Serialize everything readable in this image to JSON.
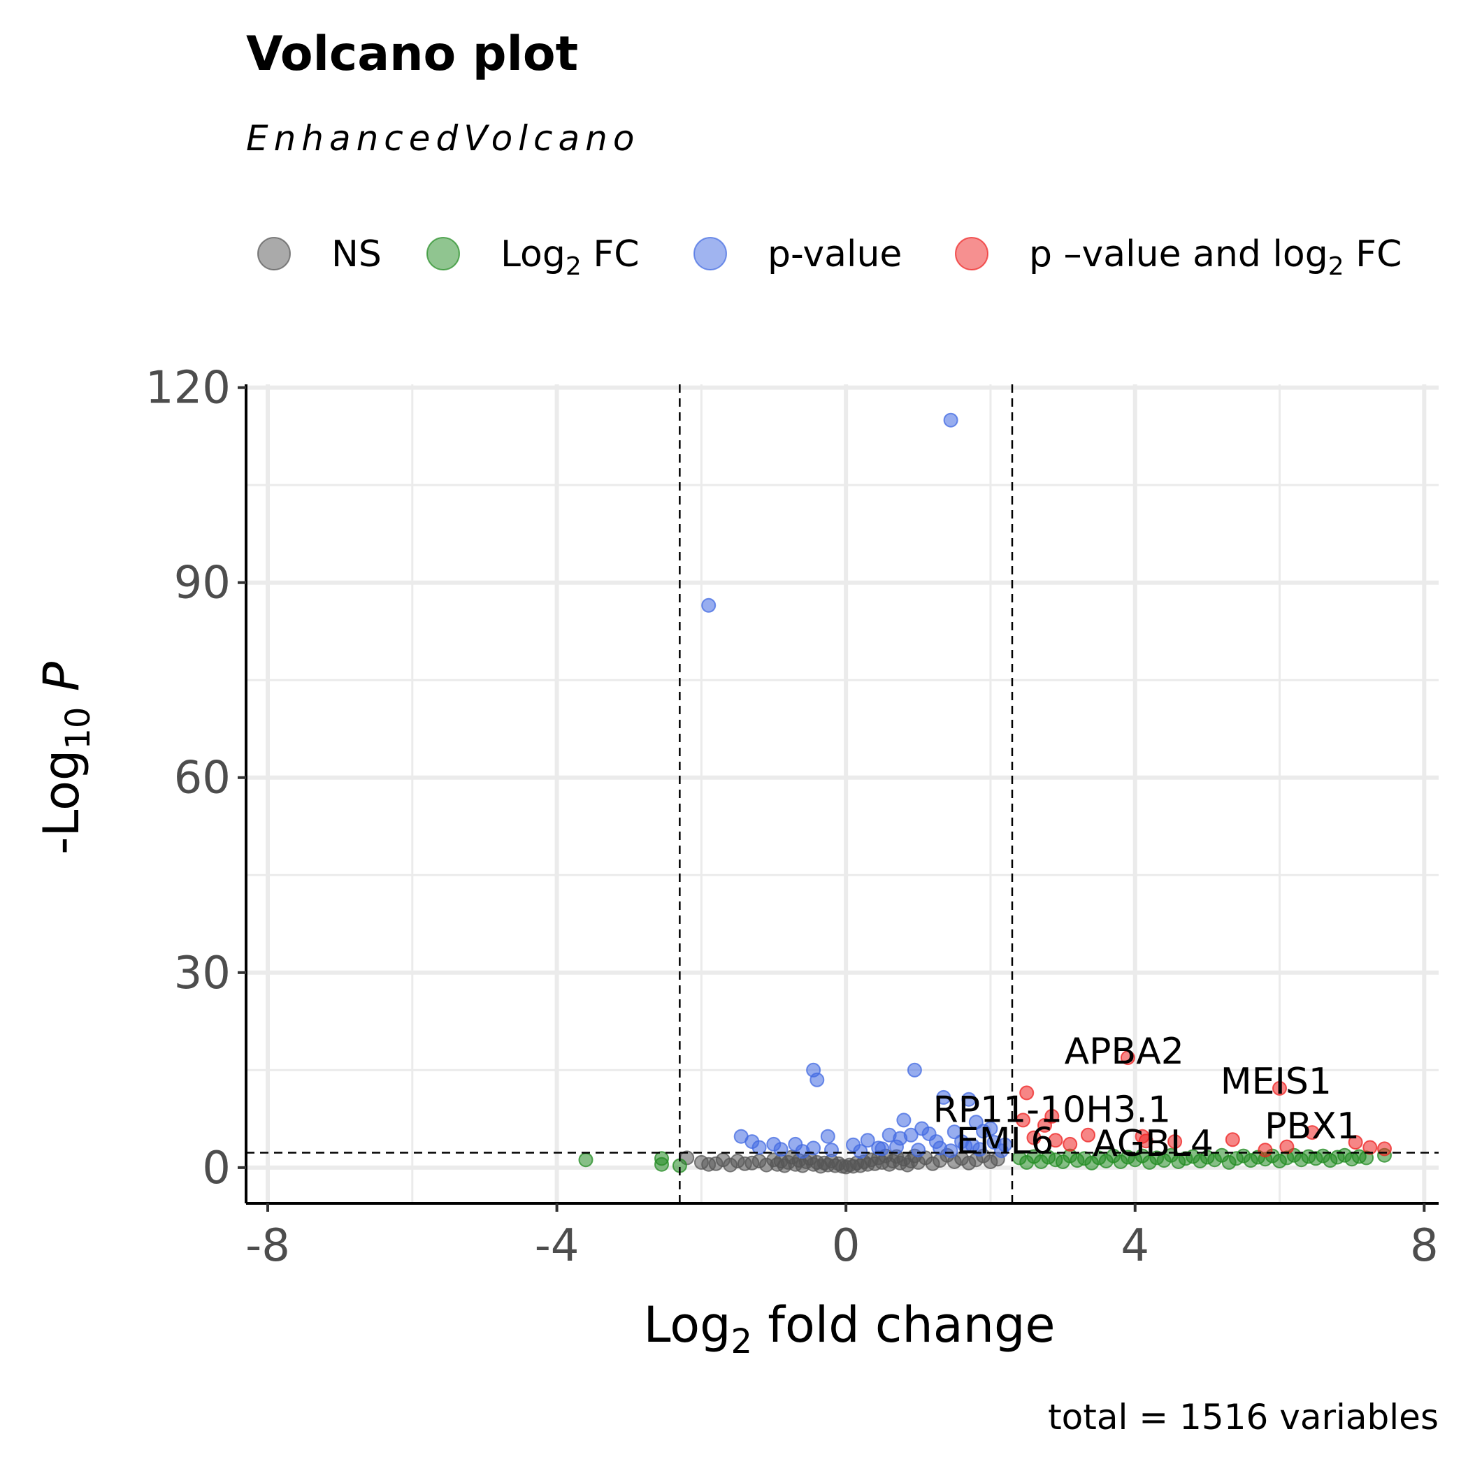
{
  "chart_data": {
    "type": "scatter",
    "title": "Volcano plot",
    "subtitle": "EnhancedVolcano",
    "xlabel": "Log2 fold change",
    "ylabel": "-Log10 P",
    "caption": "total = 1516 variables",
    "xlim": [
      -8.3,
      8.2
    ],
    "ylim": [
      -5.5,
      120.5
    ],
    "xticks": [
      -8,
      -4,
      0,
      4,
      8
    ],
    "yticks": [
      0,
      30,
      60,
      90,
      120
    ],
    "xtick_labels": [
      "-8",
      "-4",
      "0",
      "4",
      "8"
    ],
    "ytick_labels": [
      "0",
      "30",
      "60",
      "90",
      "120"
    ],
    "grid": true,
    "legend_position": "top",
    "thresholds": {
      "fc_cutoff": 2.3,
      "p_cutoff_neglog10": 2.3
    },
    "legend": [
      {
        "key": "ns",
        "label": "NS"
      },
      {
        "key": "fc",
        "label": "Log",
        "sub": "2",
        "suffix": " FC"
      },
      {
        "key": "p",
        "label": "p-value"
      },
      {
        "key": "pfc",
        "label": "p –value and log",
        "sub": "2",
        "suffix": " FC"
      }
    ],
    "colors": {
      "ns": "#555555",
      "fc": "#228b22",
      "p": "#4169e1",
      "pfc": "#ee2222"
    },
    "series": [
      {
        "name": "NS",
        "key": "ns",
        "points": [
          [
            -2.2,
            1.5
          ],
          [
            -2.0,
            0.8
          ],
          [
            -1.9,
            0.5
          ],
          [
            -1.8,
            0.6
          ],
          [
            -1.7,
            1.2
          ],
          [
            -1.6,
            0.4
          ],
          [
            -1.5,
            1.0
          ],
          [
            -1.4,
            0.6
          ],
          [
            -1.3,
            0.7
          ],
          [
            -1.2,
            1.0
          ],
          [
            -1.1,
            0.4
          ],
          [
            -1.0,
            1.2
          ],
          [
            -0.95,
            0.5
          ],
          [
            -0.9,
            1.0
          ],
          [
            -0.85,
            0.3
          ],
          [
            -0.8,
            0.8
          ],
          [
            -0.75,
            1.6
          ],
          [
            -0.7,
            0.5
          ],
          [
            -0.65,
            1.1
          ],
          [
            -0.6,
            0.3
          ],
          [
            -0.55,
            0.9
          ],
          [
            -0.5,
            1.4
          ],
          [
            -0.45,
            0.5
          ],
          [
            -0.4,
            0.8
          ],
          [
            -0.35,
            0.2
          ],
          [
            -0.3,
            0.7
          ],
          [
            -0.25,
            0.4
          ],
          [
            -0.2,
            1.0
          ],
          [
            -0.15,
            0.3
          ],
          [
            -0.1,
            0.6
          ],
          [
            -0.05,
            0.2
          ],
          [
            0.0,
            0.1
          ],
          [
            0.05,
            0.4
          ],
          [
            0.1,
            0.2
          ],
          [
            0.15,
            0.7
          ],
          [
            0.2,
            0.3
          ],
          [
            0.25,
            0.9
          ],
          [
            0.3,
            0.5
          ],
          [
            0.35,
            1.2
          ],
          [
            0.4,
            0.6
          ],
          [
            0.45,
            1.5
          ],
          [
            0.5,
            0.8
          ],
          [
            0.55,
            1.8
          ],
          [
            0.6,
            0.5
          ],
          [
            0.65,
            1.0
          ],
          [
            0.7,
            1.7
          ],
          [
            0.75,
            0.7
          ],
          [
            0.8,
            1.3
          ],
          [
            0.85,
            0.4
          ],
          [
            0.9,
            1.0
          ],
          [
            0.95,
            1.8
          ],
          [
            1.0,
            0.8
          ],
          [
            1.1,
            1.5
          ],
          [
            1.2,
            0.6
          ],
          [
            1.3,
            1.1
          ],
          [
            1.4,
            1.9
          ],
          [
            1.5,
            0.9
          ],
          [
            1.6,
            1.4
          ],
          [
            1.7,
            0.7
          ],
          [
            1.8,
            1.2
          ],
          [
            1.9,
            1.8
          ],
          [
            2.0,
            0.9
          ],
          [
            2.1,
            1.3
          ]
        ]
      },
      {
        "name": "Log2 FC",
        "key": "fc",
        "points": [
          [
            -3.6,
            1.2
          ],
          [
            -2.55,
            1.4
          ],
          [
            -2.55,
            0.5
          ],
          [
            -2.3,
            0.3
          ],
          [
            2.4,
            1.5
          ],
          [
            2.5,
            0.8
          ],
          [
            2.6,
            1.7
          ],
          [
            2.7,
            0.9
          ],
          [
            2.8,
            1.6
          ],
          [
            2.9,
            1.2
          ],
          [
            3.0,
            0.9
          ],
          [
            3.1,
            1.8
          ],
          [
            3.2,
            1.1
          ],
          [
            3.3,
            1.4
          ],
          [
            3.4,
            0.7
          ],
          [
            3.5,
            1.5
          ],
          [
            3.6,
            1.0
          ],
          [
            3.7,
            1.8
          ],
          [
            3.8,
            0.9
          ],
          [
            3.9,
            1.6
          ],
          [
            4.0,
            1.2
          ],
          [
            4.1,
            1.8
          ],
          [
            4.2,
            0.8
          ],
          [
            4.3,
            1.5
          ],
          [
            4.4,
            1.1
          ],
          [
            4.5,
            1.9
          ],
          [
            4.6,
            0.9
          ],
          [
            4.7,
            1.4
          ],
          [
            4.8,
            1.7
          ],
          [
            4.9,
            1.0
          ],
          [
            5.0,
            1.6
          ],
          [
            5.1,
            1.2
          ],
          [
            5.2,
            1.9
          ],
          [
            5.3,
            0.8
          ],
          [
            5.4,
            1.4
          ],
          [
            5.5,
            1.8
          ],
          [
            5.6,
            1.1
          ],
          [
            5.7,
            1.6
          ],
          [
            5.8,
            1.3
          ],
          [
            5.9,
            1.8
          ],
          [
            6.0,
            1.0
          ],
          [
            6.1,
            1.5
          ],
          [
            6.2,
            1.9
          ],
          [
            6.3,
            1.2
          ],
          [
            6.4,
            1.7
          ],
          [
            6.5,
            1.4
          ],
          [
            6.6,
            1.8
          ],
          [
            6.7,
            1.1
          ],
          [
            6.8,
            1.6
          ],
          [
            6.9,
            1.9
          ],
          [
            7.0,
            1.3
          ],
          [
            7.1,
            1.7
          ],
          [
            7.2,
            1.5
          ],
          [
            7.45,
            1.9
          ]
        ]
      },
      {
        "name": "p-value",
        "key": "p",
        "points": [
          [
            1.45,
            115.0
          ],
          [
            -1.9,
            86.5
          ],
          [
            -0.45,
            15.0
          ],
          [
            -0.4,
            13.5
          ],
          [
            0.95,
            15.0
          ],
          [
            1.35,
            10.8
          ],
          [
            1.7,
            10.5
          ],
          [
            1.8,
            7.0
          ],
          [
            2.0,
            6.0
          ],
          [
            0.8,
            7.3
          ],
          [
            -0.25,
            4.8
          ],
          [
            -1.45,
            4.8
          ],
          [
            -1.3,
            4.0
          ],
          [
            -1.0,
            3.6
          ],
          [
            -0.7,
            3.6
          ],
          [
            -0.45,
            3.0
          ],
          [
            0.1,
            3.5
          ],
          [
            0.3,
            4.2
          ],
          [
            0.45,
            3.0
          ],
          [
            0.6,
            5.0
          ],
          [
            0.75,
            4.5
          ],
          [
            0.9,
            5.0
          ],
          [
            1.05,
            6.0
          ],
          [
            1.15,
            5.2
          ],
          [
            1.25,
            4.0
          ],
          [
            1.5,
            5.5
          ],
          [
            1.6,
            4.0
          ],
          [
            1.75,
            3.4
          ],
          [
            1.9,
            5.6
          ],
          [
            2.05,
            3.9
          ],
          [
            2.15,
            2.6
          ],
          [
            -1.2,
            3.1
          ],
          [
            -0.9,
            2.8
          ],
          [
            -0.6,
            2.5
          ],
          [
            -0.2,
            2.7
          ],
          [
            0.2,
            2.5
          ],
          [
            0.5,
            2.9
          ],
          [
            0.7,
            3.2
          ],
          [
            1.0,
            2.7
          ],
          [
            1.3,
            3.0
          ],
          [
            1.45,
            2.6
          ],
          [
            1.65,
            3.3
          ],
          [
            1.85,
            2.8
          ],
          [
            2.2,
            3.5
          ]
        ]
      },
      {
        "name": "p –value and log2 FC",
        "key": "pfc",
        "points": [
          [
            3.9,
            16.9
          ],
          [
            6.0,
            12.2
          ],
          [
            2.5,
            11.5
          ],
          [
            2.45,
            7.3
          ],
          [
            2.85,
            7.9
          ],
          [
            2.75,
            6.5
          ],
          [
            2.9,
            4.2
          ],
          [
            3.35,
            5.0
          ],
          [
            4.1,
            4.8
          ],
          [
            4.15,
            4.1
          ],
          [
            4.55,
            4.0
          ],
          [
            5.35,
            4.3
          ],
          [
            6.45,
            5.4
          ],
          [
            7.05,
            3.9
          ],
          [
            7.25,
            3.1
          ],
          [
            7.45,
            2.9
          ],
          [
            5.8,
            2.7
          ],
          [
            6.1,
            3.2
          ],
          [
            2.6,
            4.6
          ],
          [
            3.1,
            3.6
          ]
        ]
      }
    ],
    "annotations": [
      {
        "text": "APBA2",
        "x": 3.85,
        "y": 16.0
      },
      {
        "text": "MEIS1",
        "x": 5.95,
        "y": 11.4
      },
      {
        "text": "RP11-10H3.1",
        "x": 2.85,
        "y": 7.0
      },
      {
        "text": "PBX1",
        "x": 6.45,
        "y": 4.5
      },
      {
        "text": "EML6",
        "x": 2.2,
        "y": 2.2
      },
      {
        "text": "AGBL4",
        "x": 4.25,
        "y": 1.8
      }
    ]
  }
}
